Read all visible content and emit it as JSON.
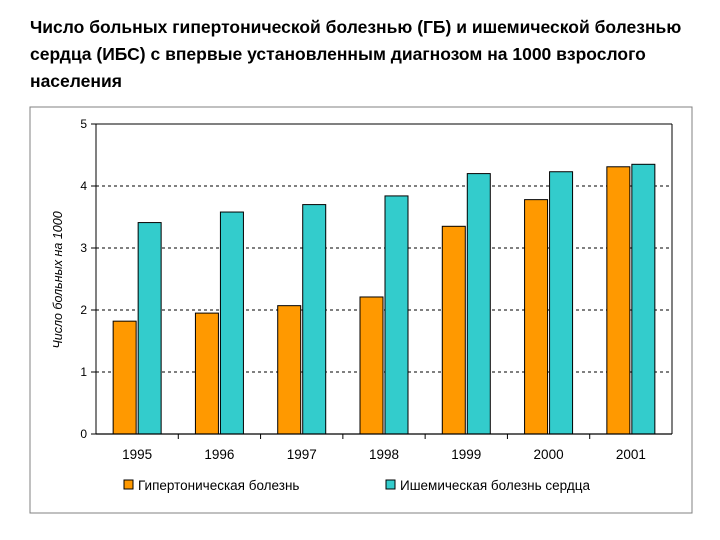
{
  "slide": {
    "title": "Число больных гипертонической болезнью (ГБ) и ишемической болезнью сердца (ИБС) с впервые установленным диагнозом на 1000 взрослого населения"
  },
  "colors": {
    "gb": "#FF9900",
    "ibs": "#33CCCC",
    "grid": "#000000",
    "frame": "#808080"
  },
  "chart_data": {
    "type": "bar",
    "title": "Число больных гипертонической болезнью (ГБ) и ишемической болезнью сердца (ИБС) с впервые установленным диагнозом на 1000 взрослого населения",
    "xlabel": "",
    "ylabel": "Число больных на 1000",
    "ylim": [
      0,
      5
    ],
    "yticks": [
      0,
      1,
      2,
      3,
      4,
      5
    ],
    "grid": true,
    "legend_position": "bottom",
    "categories": [
      "1995",
      "1996",
      "1997",
      "1998",
      "1999",
      "2000",
      "2001"
    ],
    "series": [
      {
        "name": "Гипертоническая болезнь",
        "color": "#FF9900",
        "values": [
          1.82,
          1.95,
          2.07,
          2.21,
          3.35,
          3.78,
          4.31
        ]
      },
      {
        "name": "Ишемическая болезнь сердца",
        "color": "#33CCCC",
        "values": [
          3.41,
          3.58,
          3.7,
          3.84,
          4.2,
          4.23,
          4.35
        ]
      }
    ]
  }
}
